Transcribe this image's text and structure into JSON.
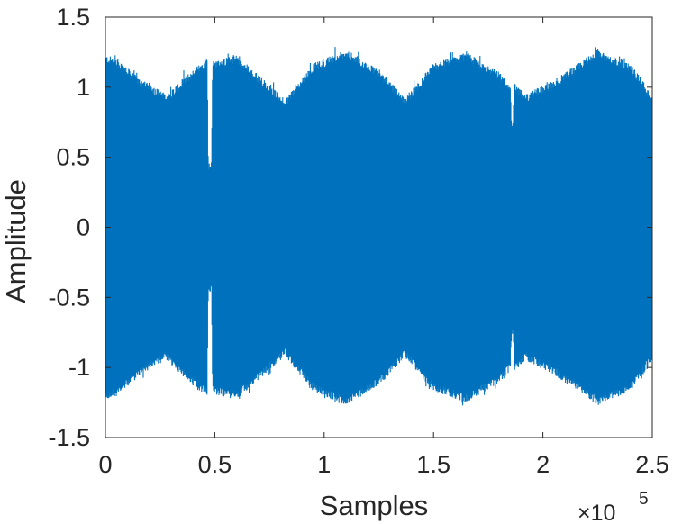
{
  "chart_data": {
    "type": "line",
    "title": "",
    "xlabel": "Samples",
    "ylabel": "Amplitude",
    "xlim": [
      0,
      250000
    ],
    "ylim": [
      -1.5,
      1.5
    ],
    "x_tick_labels": [
      "0",
      "0.5",
      "1",
      "1.5",
      "2",
      "2.5"
    ],
    "x_tick_values": [
      0,
      50000,
      100000,
      150000,
      200000,
      250000
    ],
    "x_exponent_base": "×10",
    "x_exponent_power": "5",
    "y_tick_labels": [
      "1.5",
      "1",
      "0.5",
      "0",
      "-0.5",
      "-1",
      "-1.5"
    ],
    "y_tick_values": [
      1.5,
      1,
      0.5,
      0,
      -0.5,
      -1,
      -1.5
    ],
    "grid": false,
    "series_color": "#0072BD",
    "series": [
      {
        "values_description": "dense oscillating audio waveform; envelope (upper bound) samples listed below",
        "envelope_x": [
          0,
          5000,
          15000,
          28000,
          40000,
          46500,
          47000,
          48500,
          49000,
          60000,
          80000,
          82000,
          95000,
          110000,
          125000,
          137000,
          150000,
          165000,
          180000,
          185000,
          185700,
          186300,
          187000,
          192000,
          205000,
          225000,
          240000,
          250000
        ],
        "envelope_amp": [
          1.18,
          1.16,
          1.02,
          0.9,
          1.08,
          1.16,
          0.42,
          0.42,
          1.14,
          1.18,
          0.9,
          0.87,
          1.12,
          1.22,
          1.08,
          0.88,
          1.12,
          1.2,
          1.06,
          0.98,
          0.72,
          0.72,
          0.98,
          0.9,
          1.0,
          1.22,
          1.12,
          0.9
        ]
      }
    ]
  }
}
